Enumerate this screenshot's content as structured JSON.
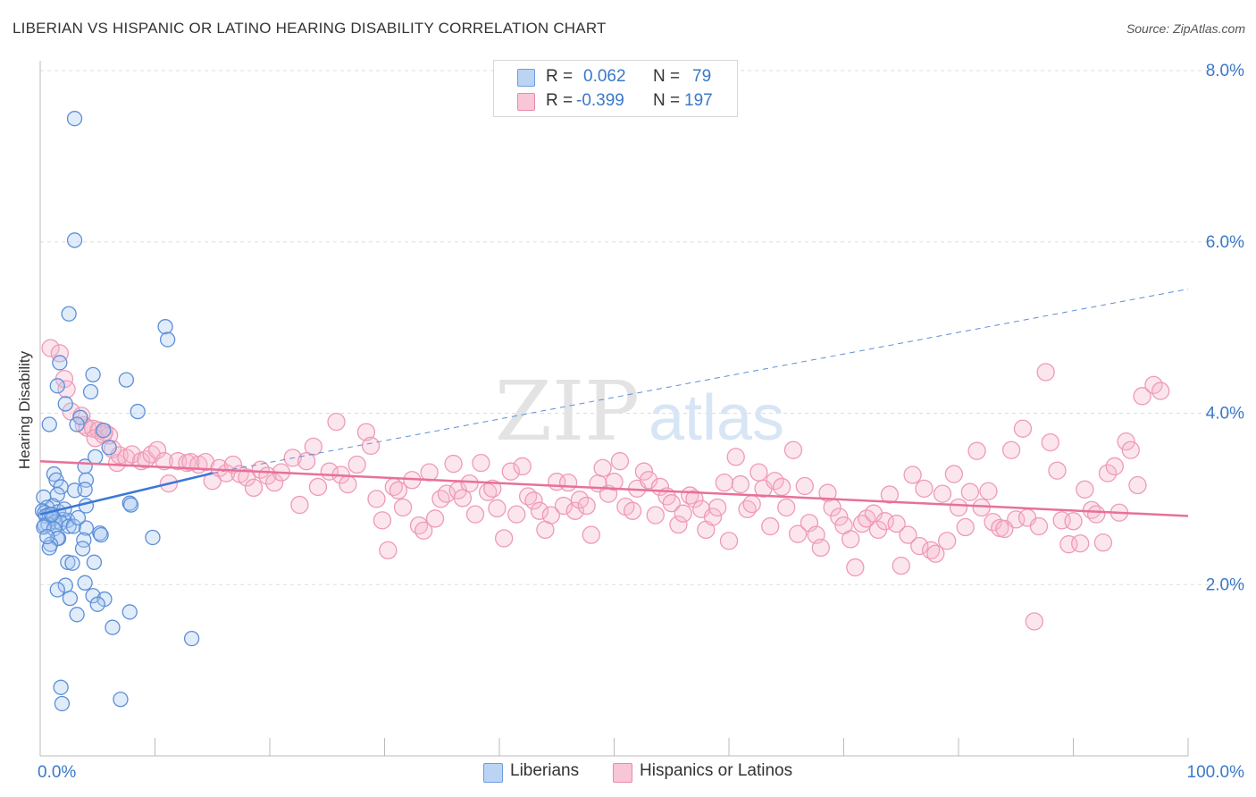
{
  "header": {
    "title": "LIBERIAN VS HISPANIC OR LATINO HEARING DISABILITY CORRELATION CHART",
    "source": "Source: ZipAtlas.com"
  },
  "legend": {
    "rows": [
      {
        "r_label": "R =",
        "r_value": "0.062",
        "n_label": "N =",
        "n_value": "79",
        "color": "#a9c8f0"
      },
      {
        "r_label": "R =",
        "r_value": "-0.399",
        "n_label": "N =",
        "n_value": "197",
        "color": "#f6b6cb"
      }
    ]
  },
  "bottom_legend": [
    {
      "label": "Liberians",
      "color": "#a9c8f0"
    },
    {
      "label": "Hispanics or Latinos",
      "color": "#f6b6cb"
    }
  ],
  "watermark": {
    "part1": "ZIP",
    "part2": "atlas"
  },
  "chart_data": {
    "type": "scatter",
    "title": "LIBERIAN VS HISPANIC OR LATINO HEARING DISABILITY CORRELATION CHART",
    "xlabel": "",
    "ylabel": "Hearing Disability",
    "xlim": [
      0,
      100
    ],
    "ylim": [
      0,
      8.0
    ],
    "x_tick_labels": [
      "0.0%",
      "100.0%"
    ],
    "y_ticks": [
      2.0,
      4.0,
      6.0,
      8.0
    ],
    "y_tick_labels": [
      "2.0%",
      "4.0%",
      "6.0%",
      "8.0%"
    ],
    "grid": "horizontal dashed",
    "legend_position": "top-center",
    "colors": {
      "liberians": "#3b78d8",
      "hispanics": "#e8709a",
      "tick_label": "#3a78c9"
    },
    "series": [
      {
        "name": "Liberians",
        "trend": {
          "x": [
            0,
            15
          ],
          "y": [
            2.82,
            3.3
          ],
          "extended_dashed_to": {
            "x": 100,
            "y": 5.45
          }
        },
        "points": [
          [
            3.0,
            7.44
          ],
          [
            3.0,
            6.02
          ],
          [
            2.5,
            5.16
          ],
          [
            10.9,
            5.01
          ],
          [
            11.1,
            4.86
          ],
          [
            1.7,
            4.59
          ],
          [
            4.6,
            4.45
          ],
          [
            7.5,
            4.39
          ],
          [
            1.5,
            4.32
          ],
          [
            4.4,
            4.25
          ],
          [
            2.2,
            4.11
          ],
          [
            8.5,
            4.02
          ],
          [
            3.5,
            3.95
          ],
          [
            0.8,
            3.87
          ],
          [
            3.2,
            3.87
          ],
          [
            5.5,
            3.8
          ],
          [
            6.0,
            3.6
          ],
          [
            4.8,
            3.49
          ],
          [
            3.9,
            3.38
          ],
          [
            1.2,
            3.29
          ],
          [
            1.4,
            3.22
          ],
          [
            4.0,
            3.22
          ],
          [
            1.8,
            3.14
          ],
          [
            3.0,
            3.1
          ],
          [
            3.9,
            3.11
          ],
          [
            1.5,
            3.05
          ],
          [
            0.3,
            3.02
          ],
          [
            7.8,
            2.95
          ],
          [
            7.9,
            2.93
          ],
          [
            4.0,
            2.92
          ],
          [
            1.1,
            2.92
          ],
          [
            0.6,
            2.9
          ],
          [
            0.2,
            2.86
          ],
          [
            1.6,
            2.85
          ],
          [
            0.4,
            2.84
          ],
          [
            0.8,
            2.82
          ],
          [
            0.5,
            2.8
          ],
          [
            1.1,
            2.77
          ],
          [
            2.0,
            2.76
          ],
          [
            2.4,
            2.75
          ],
          [
            1.3,
            2.73
          ],
          [
            1.8,
            2.72
          ],
          [
            0.7,
            2.7
          ],
          [
            0.4,
            2.69
          ],
          [
            2.5,
            2.68
          ],
          [
            0.3,
            2.67
          ],
          [
            4.0,
            2.66
          ],
          [
            1.2,
            2.65
          ],
          [
            5.2,
            2.6
          ],
          [
            5.3,
            2.58
          ],
          [
            9.8,
            2.55
          ],
          [
            1.6,
            2.54
          ],
          [
            1.5,
            2.54
          ],
          [
            3.8,
            2.52
          ],
          [
            0.9,
            2.47
          ],
          [
            0.8,
            2.43
          ],
          [
            3.7,
            2.42
          ],
          [
            2.4,
            2.26
          ],
          [
            4.7,
            2.26
          ],
          [
            2.8,
            2.25
          ],
          [
            3.9,
            2.02
          ],
          [
            2.2,
            1.99
          ],
          [
            1.5,
            1.94
          ],
          [
            4.6,
            1.87
          ],
          [
            2.6,
            1.84
          ],
          [
            5.6,
            1.83
          ],
          [
            5.0,
            1.77
          ],
          [
            7.8,
            1.68
          ],
          [
            3.2,
            1.65
          ],
          [
            6.3,
            1.5
          ],
          [
            13.2,
            1.37
          ],
          [
            1.8,
            0.8
          ],
          [
            7.0,
            0.66
          ],
          [
            1.9,
            0.61
          ],
          [
            2.9,
            2.68
          ],
          [
            1.0,
            2.82
          ],
          [
            2.1,
            2.88
          ],
          [
            0.6,
            2.56
          ],
          [
            3.3,
            2.78
          ]
        ]
      },
      {
        "name": "Hispanics or Latinos",
        "trend": {
          "x": [
            0,
            100
          ],
          "y": [
            3.44,
            2.8
          ]
        },
        "points": [
          [
            0.9,
            4.76
          ],
          [
            1.7,
            4.7
          ],
          [
            2.1,
            4.4
          ],
          [
            2.3,
            4.28
          ],
          [
            2.7,
            4.02
          ],
          [
            3.6,
            3.97
          ],
          [
            3.8,
            3.86
          ],
          [
            4.1,
            3.83
          ],
          [
            4.6,
            3.82
          ],
          [
            5.1,
            3.8
          ],
          [
            5.6,
            3.78
          ],
          [
            6.0,
            3.74
          ],
          [
            4.8,
            3.71
          ],
          [
            5.5,
            3.75
          ],
          [
            6.3,
            3.58
          ],
          [
            6.7,
            3.42
          ],
          [
            6.9,
            3.51
          ],
          [
            7.5,
            3.48
          ],
          [
            8.0,
            3.52
          ],
          [
            8.8,
            3.44
          ],
          [
            9.2,
            3.46
          ],
          [
            9.7,
            3.52
          ],
          [
            10.2,
            3.57
          ],
          [
            10.8,
            3.44
          ],
          [
            11.2,
            3.18
          ],
          [
            12.0,
            3.44
          ],
          [
            12.8,
            3.42
          ],
          [
            13.1,
            3.43
          ],
          [
            13.8,
            3.4
          ],
          [
            14.4,
            3.43
          ],
          [
            15.0,
            3.21
          ],
          [
            15.6,
            3.36
          ],
          [
            16.2,
            3.3
          ],
          [
            16.8,
            3.4
          ],
          [
            17.4,
            3.29
          ],
          [
            18.0,
            3.25
          ],
          [
            18.6,
            3.13
          ],
          [
            19.2,
            3.34
          ],
          [
            19.8,
            3.27
          ],
          [
            20.4,
            3.19
          ],
          [
            21.0,
            3.31
          ],
          [
            22.0,
            3.48
          ],
          [
            22.6,
            2.93
          ],
          [
            23.8,
            3.61
          ],
          [
            23.2,
            3.44
          ],
          [
            24.2,
            3.14
          ],
          [
            25.8,
            3.9
          ],
          [
            25.2,
            3.32
          ],
          [
            26.2,
            3.28
          ],
          [
            26.8,
            3.17
          ],
          [
            27.6,
            3.4
          ],
          [
            28.4,
            3.78
          ],
          [
            28.8,
            3.62
          ],
          [
            29.3,
            3.0
          ],
          [
            29.8,
            2.75
          ],
          [
            30.3,
            2.4
          ],
          [
            30.8,
            3.14
          ],
          [
            31.2,
            3.1
          ],
          [
            31.6,
            2.9
          ],
          [
            32.4,
            3.22
          ],
          [
            33.0,
            2.69
          ],
          [
            33.4,
            2.63
          ],
          [
            33.9,
            3.31
          ],
          [
            34.4,
            2.77
          ],
          [
            34.9,
            3.0
          ],
          [
            35.4,
            3.06
          ],
          [
            36.0,
            3.41
          ],
          [
            36.4,
            3.1
          ],
          [
            36.8,
            3.01
          ],
          [
            37.4,
            3.18
          ],
          [
            37.9,
            2.82
          ],
          [
            38.4,
            3.42
          ],
          [
            39.0,
            3.08
          ],
          [
            39.4,
            3.12
          ],
          [
            39.8,
            2.89
          ],
          [
            40.4,
            2.54
          ],
          [
            41.0,
            3.32
          ],
          [
            41.5,
            2.82
          ],
          [
            42.0,
            3.38
          ],
          [
            42.5,
            3.03
          ],
          [
            43.0,
            2.98
          ],
          [
            43.5,
            2.86
          ],
          [
            44.0,
            2.64
          ],
          [
            44.5,
            2.81
          ],
          [
            45.0,
            3.2
          ],
          [
            45.6,
            2.92
          ],
          [
            46.0,
            3.19
          ],
          [
            46.6,
            2.86
          ],
          [
            47.0,
            2.99
          ],
          [
            47.6,
            2.92
          ],
          [
            48.0,
            2.58
          ],
          [
            48.6,
            3.18
          ],
          [
            49.0,
            3.36
          ],
          [
            49.5,
            3.06
          ],
          [
            50.0,
            3.2
          ],
          [
            50.5,
            3.44
          ],
          [
            51.0,
            2.91
          ],
          [
            51.6,
            2.86
          ],
          [
            52.0,
            3.12
          ],
          [
            52.6,
            3.32
          ],
          [
            53.0,
            3.22
          ],
          [
            53.6,
            2.81
          ],
          [
            54.0,
            3.14
          ],
          [
            54.6,
            3.03
          ],
          [
            55.0,
            2.95
          ],
          [
            55.6,
            2.7
          ],
          [
            56.0,
            2.83
          ],
          [
            56.6,
            3.04
          ],
          [
            57.0,
            3.0
          ],
          [
            57.6,
            2.88
          ],
          [
            58.0,
            2.64
          ],
          [
            58.6,
            2.79
          ],
          [
            59.0,
            2.9
          ],
          [
            59.6,
            3.19
          ],
          [
            60.0,
            2.51
          ],
          [
            60.6,
            3.49
          ],
          [
            61.0,
            3.17
          ],
          [
            61.6,
            2.88
          ],
          [
            62.0,
            2.94
          ],
          [
            62.6,
            3.31
          ],
          [
            63.0,
            3.12
          ],
          [
            63.6,
            2.68
          ],
          [
            64.0,
            3.21
          ],
          [
            64.6,
            3.14
          ],
          [
            65.0,
            2.9
          ],
          [
            65.6,
            3.57
          ],
          [
            66.0,
            2.59
          ],
          [
            66.6,
            3.15
          ],
          [
            67.0,
            2.72
          ],
          [
            67.6,
            2.58
          ],
          [
            68.0,
            2.43
          ],
          [
            68.6,
            3.07
          ],
          [
            69.0,
            2.9
          ],
          [
            69.6,
            2.79
          ],
          [
            70.0,
            2.69
          ],
          [
            70.6,
            2.53
          ],
          [
            71.0,
            2.2
          ],
          [
            71.6,
            2.71
          ],
          [
            72.0,
            2.77
          ],
          [
            72.6,
            2.83
          ],
          [
            73.0,
            2.64
          ],
          [
            73.6,
            2.74
          ],
          [
            74.0,
            3.05
          ],
          [
            74.6,
            2.71
          ],
          [
            75.0,
            2.22
          ],
          [
            75.6,
            2.58
          ],
          [
            76.0,
            3.28
          ],
          [
            76.6,
            2.45
          ],
          [
            77.0,
            3.12
          ],
          [
            77.6,
            2.4
          ],
          [
            78.0,
            2.36
          ],
          [
            78.6,
            3.06
          ],
          [
            79.0,
            2.51
          ],
          [
            79.6,
            3.29
          ],
          [
            80.0,
            2.9
          ],
          [
            80.6,
            2.67
          ],
          [
            81.0,
            3.08
          ],
          [
            81.6,
            3.56
          ],
          [
            82.0,
            2.9
          ],
          [
            82.6,
            3.09
          ],
          [
            83.0,
            2.73
          ],
          [
            83.6,
            2.66
          ],
          [
            84.0,
            2.65
          ],
          [
            84.6,
            3.57
          ],
          [
            85.0,
            2.76
          ],
          [
            85.6,
            3.82
          ],
          [
            86.0,
            2.78
          ],
          [
            86.6,
            1.57
          ],
          [
            87.0,
            2.68
          ],
          [
            87.6,
            4.48
          ],
          [
            88.0,
            3.66
          ],
          [
            88.6,
            3.33
          ],
          [
            89.0,
            2.75
          ],
          [
            89.6,
            2.47
          ],
          [
            90.0,
            2.74
          ],
          [
            90.6,
            2.48
          ],
          [
            91.0,
            3.11
          ],
          [
            91.6,
            2.87
          ],
          [
            92.0,
            2.82
          ],
          [
            92.6,
            2.49
          ],
          [
            93.0,
            3.3
          ],
          [
            93.6,
            3.38
          ],
          [
            94.0,
            2.84
          ],
          [
            94.6,
            3.67
          ],
          [
            95.0,
            3.57
          ],
          [
            95.6,
            3.16
          ],
          [
            96.0,
            4.2
          ],
          [
            97.0,
            4.33
          ],
          [
            97.6,
            4.26
          ]
        ]
      }
    ]
  }
}
